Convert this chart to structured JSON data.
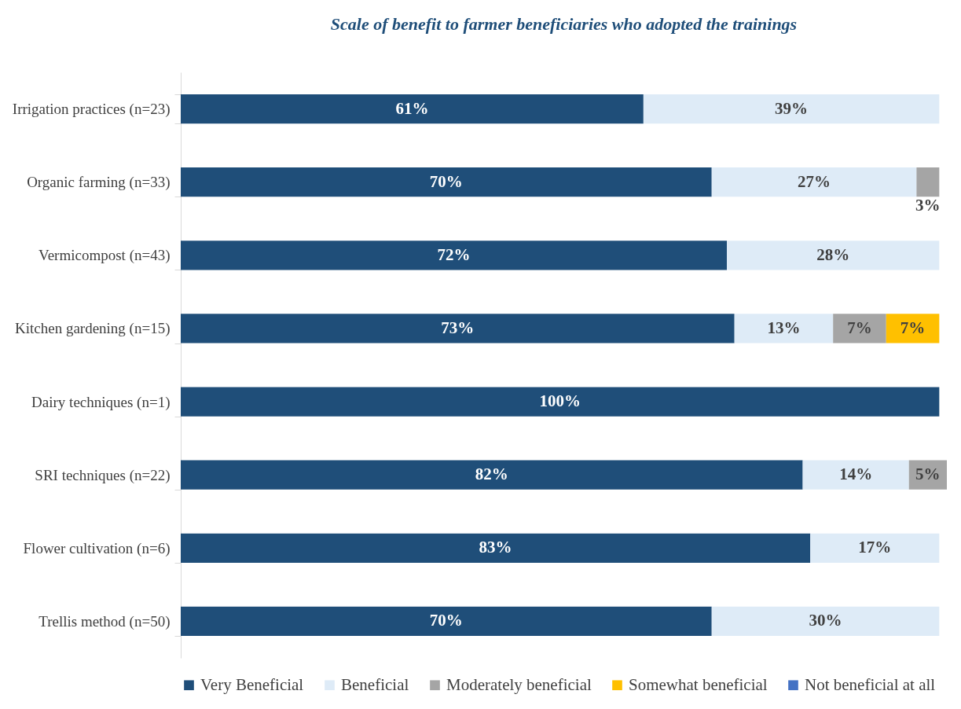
{
  "chart_data": {
    "type": "bar",
    "orientation": "horizontal",
    "stacked": true,
    "title": "Scale of benefit to farmer beneficiaries who adopted the trainings",
    "categories": [
      "Irrigation practices (n=23)",
      "Organic farming (n=33)",
      "Vermicompost (n=43)",
      "Kitchen gardening (n=15)",
      "Dairy techniques (n=1)",
      "SRI techniques (n=22)",
      "Flower cultivation (n=6)",
      "Trellis method (n=50)"
    ],
    "series": [
      {
        "name": "Very Beneficial",
        "color": "#1f4e79",
        "values": [
          61,
          70,
          72,
          73,
          100,
          82,
          83,
          70
        ],
        "value_labels": [
          "61%",
          "70%",
          "72%",
          "73%",
          "100%",
          "82%",
          "83%",
          "70%"
        ]
      },
      {
        "name": "Beneficial",
        "color": "#deebf7",
        "values": [
          39,
          27,
          28,
          13,
          null,
          14,
          17,
          30
        ],
        "value_labels": [
          "39%",
          "27%",
          "28%",
          "13%",
          null,
          "14%",
          "17%",
          "30%"
        ]
      },
      {
        "name": "Moderately beneficial",
        "color": "#a5a5a5",
        "values": [
          null,
          3,
          null,
          7,
          null,
          5,
          null,
          null
        ],
        "value_labels": [
          null,
          "3%",
          null,
          "7%",
          null,
          "5%",
          null,
          null
        ]
      },
      {
        "name": "Somewhat beneficial",
        "color": "#ffc000",
        "values": [
          null,
          null,
          null,
          7,
          null,
          null,
          null,
          null
        ],
        "value_labels": [
          null,
          null,
          null,
          "7%",
          null,
          null,
          null,
          null
        ]
      },
      {
        "name": "Not beneficial at all",
        "color": "#4472c4",
        "values": [
          null,
          null,
          null,
          null,
          null,
          null,
          null,
          null
        ]
      }
    ],
    "legend": "bottom",
    "grid": false
  }
}
